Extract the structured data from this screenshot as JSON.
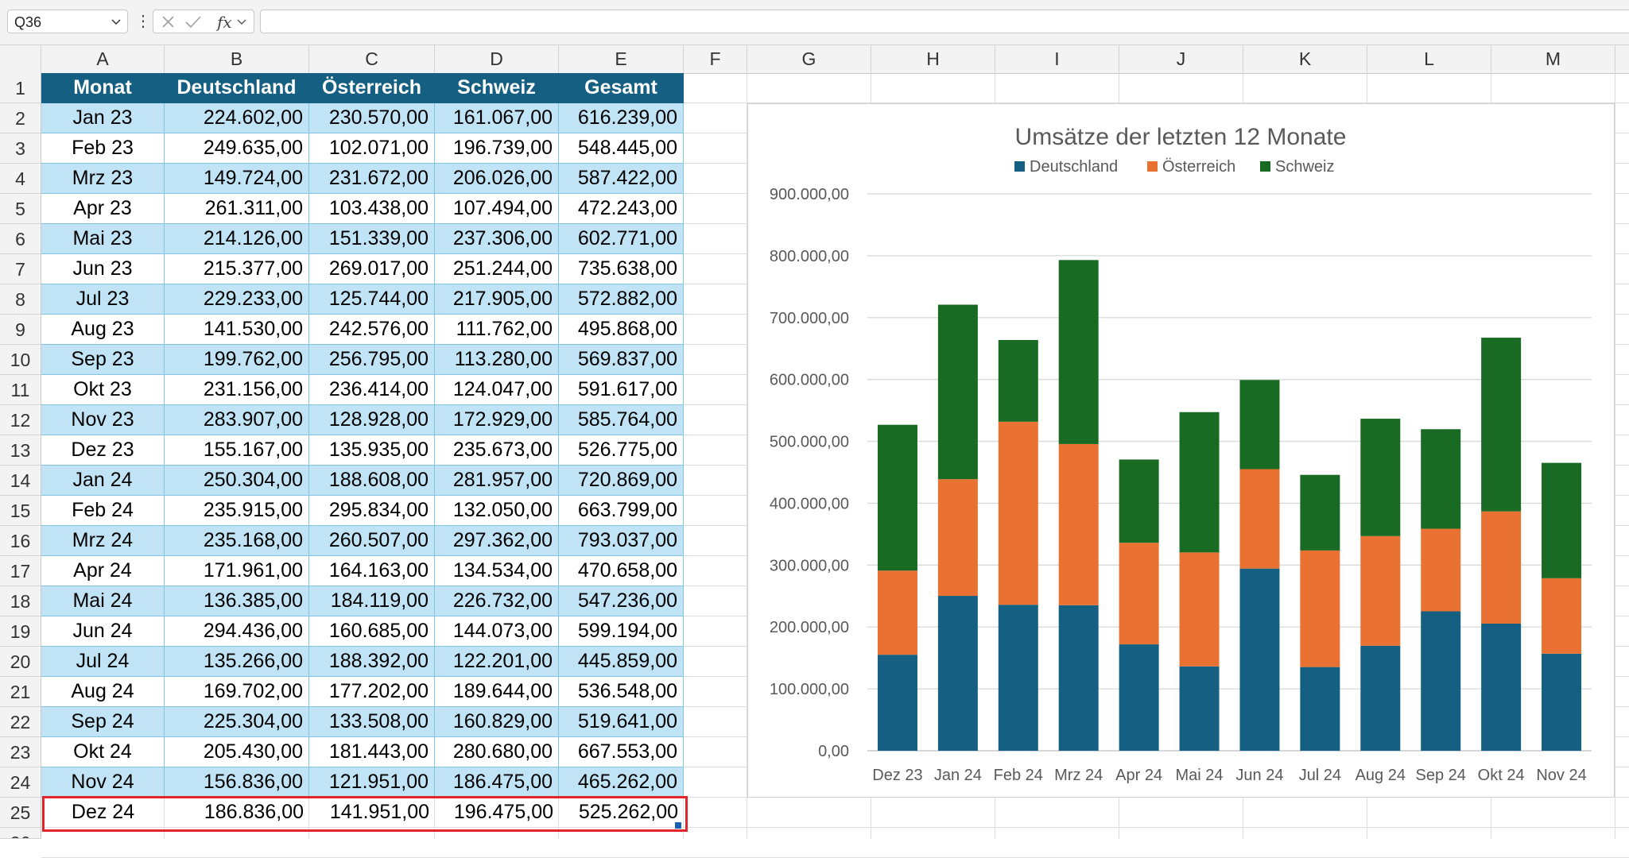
{
  "formula_bar": {
    "name_box": "Q36",
    "fx_label": "fx",
    "formula": ""
  },
  "grid": {
    "columns": [
      "A",
      "B",
      "C",
      "D",
      "E",
      "F",
      "G",
      "H",
      "I",
      "J",
      "K",
      "L",
      "M"
    ],
    "rows": [
      "1",
      "2",
      "3",
      "4",
      "5",
      "6",
      "7",
      "8",
      "9",
      "10",
      "11",
      "12",
      "13",
      "14",
      "15",
      "16",
      "17",
      "18",
      "19",
      "20",
      "21",
      "22",
      "23",
      "24",
      "25"
    ],
    "partial_row": "26"
  },
  "table": {
    "headers": [
      "Monat",
      "Deutschland",
      "Österreich",
      "Schweiz",
      "Gesamt"
    ],
    "rows": [
      [
        "Jan 23",
        "224.602,00",
        "230.570,00",
        "161.067,00",
        "616.239,00"
      ],
      [
        "Feb 23",
        "249.635,00",
        "102.071,00",
        "196.739,00",
        "548.445,00"
      ],
      [
        "Mrz 23",
        "149.724,00",
        "231.672,00",
        "206.026,00",
        "587.422,00"
      ],
      [
        "Apr 23",
        "261.311,00",
        "103.438,00",
        "107.494,00",
        "472.243,00"
      ],
      [
        "Mai 23",
        "214.126,00",
        "151.339,00",
        "237.306,00",
        "602.771,00"
      ],
      [
        "Jun 23",
        "215.377,00",
        "269.017,00",
        "251.244,00",
        "735.638,00"
      ],
      [
        "Jul 23",
        "229.233,00",
        "125.744,00",
        "217.905,00",
        "572.882,00"
      ],
      [
        "Aug 23",
        "141.530,00",
        "242.576,00",
        "111.762,00",
        "495.868,00"
      ],
      [
        "Sep 23",
        "199.762,00",
        "256.795,00",
        "113.280,00",
        "569.837,00"
      ],
      [
        "Okt 23",
        "231.156,00",
        "236.414,00",
        "124.047,00",
        "591.617,00"
      ],
      [
        "Nov 23",
        "283.907,00",
        "128.928,00",
        "172.929,00",
        "585.764,00"
      ],
      [
        "Dez 23",
        "155.167,00",
        "135.935,00",
        "235.673,00",
        "526.775,00"
      ],
      [
        "Jan 24",
        "250.304,00",
        "188.608,00",
        "281.957,00",
        "720.869,00"
      ],
      [
        "Feb 24",
        "235.915,00",
        "295.834,00",
        "132.050,00",
        "663.799,00"
      ],
      [
        "Mrz 24",
        "235.168,00",
        "260.507,00",
        "297.362,00",
        "793.037,00"
      ],
      [
        "Apr 24",
        "171.961,00",
        "164.163,00",
        "134.534,00",
        "470.658,00"
      ],
      [
        "Mai 24",
        "136.385,00",
        "184.119,00",
        "226.732,00",
        "547.236,00"
      ],
      [
        "Jun 24",
        "294.436,00",
        "160.685,00",
        "144.073,00",
        "599.194,00"
      ],
      [
        "Jul 24",
        "135.266,00",
        "188.392,00",
        "122.201,00",
        "445.859,00"
      ],
      [
        "Aug 24",
        "169.702,00",
        "177.202,00",
        "189.644,00",
        "536.548,00"
      ],
      [
        "Sep 24",
        "225.304,00",
        "133.508,00",
        "160.829,00",
        "519.641,00"
      ],
      [
        "Okt 24",
        "205.430,00",
        "181.443,00",
        "280.680,00",
        "667.553,00"
      ],
      [
        "Nov 24",
        "156.836,00",
        "121.951,00",
        "186.475,00",
        "465.262,00"
      ],
      [
        "Dez 24",
        "186.836,00",
        "141.951,00",
        "196.475,00",
        "525.262,00"
      ]
    ]
  },
  "colors": {
    "header_fill": "#156082",
    "band_fill": "#c0e4f5",
    "selection": "#e3242b",
    "deutschland": "#156082",
    "oesterreich": "#e97132",
    "schweiz": "#196b24"
  },
  "chart_data": {
    "type": "bar",
    "stacked": true,
    "title": "Umsätze der letzten 12 Monate",
    "categories": [
      "Dez 23",
      "Jan 24",
      "Feb 24",
      "Mrz 24",
      "Apr 24",
      "Mai 24",
      "Jun 24",
      "Jul 24",
      "Aug 24",
      "Sep 24",
      "Okt 24",
      "Nov 24"
    ],
    "series": [
      {
        "name": "Deutschland",
        "color": "#156082",
        "values": [
          155167,
          250304,
          235915,
          235168,
          171961,
          136385,
          294436,
          135266,
          169702,
          225304,
          205430,
          156836
        ]
      },
      {
        "name": "Österreich",
        "color": "#e97132",
        "values": [
          135935,
          188608,
          295834,
          260507,
          164163,
          184119,
          160685,
          188392,
          177202,
          133508,
          181443,
          121951
        ]
      },
      {
        "name": "Schweiz",
        "color": "#196b24",
        "values": [
          235673,
          281957,
          132050,
          297362,
          134534,
          226732,
          144073,
          122201,
          189644,
          160829,
          280680,
          186475
        ]
      }
    ],
    "ylim": [
      0,
      900000
    ],
    "yticks": [
      "0,00",
      "100.000,00",
      "200.000,00",
      "300.000,00",
      "400.000,00",
      "500.000,00",
      "600.000,00",
      "700.000,00",
      "800.000,00",
      "900.000,00"
    ],
    "grid": true,
    "legend_position": "top"
  }
}
